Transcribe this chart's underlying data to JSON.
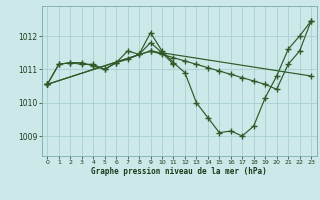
{
  "title": "Graphe pression niveau de la mer (hPa)",
  "bg_color": "#cce8e8",
  "line_color": "#2d5a27",
  "grid_color": "#a8d0d0",
  "tick_color": "#1a3a1a",
  "xlim": [
    -0.5,
    23.5
  ],
  "ylim": [
    1008.4,
    1012.9
  ],
  "yticks": [
    1009,
    1010,
    1011,
    1012
  ],
  "xticks": [
    0,
    1,
    2,
    3,
    4,
    5,
    6,
    7,
    8,
    9,
    10,
    11,
    12,
    13,
    14,
    15,
    16,
    17,
    18,
    19,
    20,
    21,
    22,
    23
  ],
  "series": {
    "line1_x": [
      0,
      1,
      2,
      3,
      4,
      5,
      6,
      7,
      8,
      9,
      10,
      11
    ],
    "line1_y": [
      1010.55,
      1011.15,
      1011.2,
      1011.15,
      1011.15,
      1011.0,
      1011.2,
      1011.55,
      1011.45,
      1011.8,
      1011.5,
      1011.15
    ],
    "line2_x": [
      0,
      1,
      2,
      3,
      4,
      5,
      6,
      7,
      8,
      9,
      10,
      11,
      12,
      13,
      14,
      15,
      16,
      17,
      18,
      19,
      20,
      21,
      22,
      23
    ],
    "line2_y": [
      1010.55,
      1011.15,
      1011.2,
      1011.2,
      1011.1,
      1011.0,
      1011.2,
      1011.3,
      1011.45,
      1012.1,
      1011.55,
      1011.2,
      1010.9,
      1010.0,
      1009.55,
      1009.1,
      1009.15,
      1009.0,
      1009.3,
      1010.15,
      1010.8,
      1011.6,
      1012.0,
      1012.45
    ],
    "line3_x": [
      0,
      9,
      10,
      11,
      12,
      13,
      14,
      15,
      16,
      17,
      18,
      19,
      20,
      21,
      22,
      23
    ],
    "line3_y": [
      1010.55,
      1011.55,
      1011.45,
      1011.35,
      1011.25,
      1011.15,
      1011.05,
      1010.95,
      1010.85,
      1010.75,
      1010.65,
      1010.55,
      1010.4,
      1011.15,
      1011.55,
      1012.45
    ],
    "line4_x": [
      0,
      9,
      23
    ],
    "line4_y": [
      1010.55,
      1011.55,
      1010.8
    ]
  }
}
